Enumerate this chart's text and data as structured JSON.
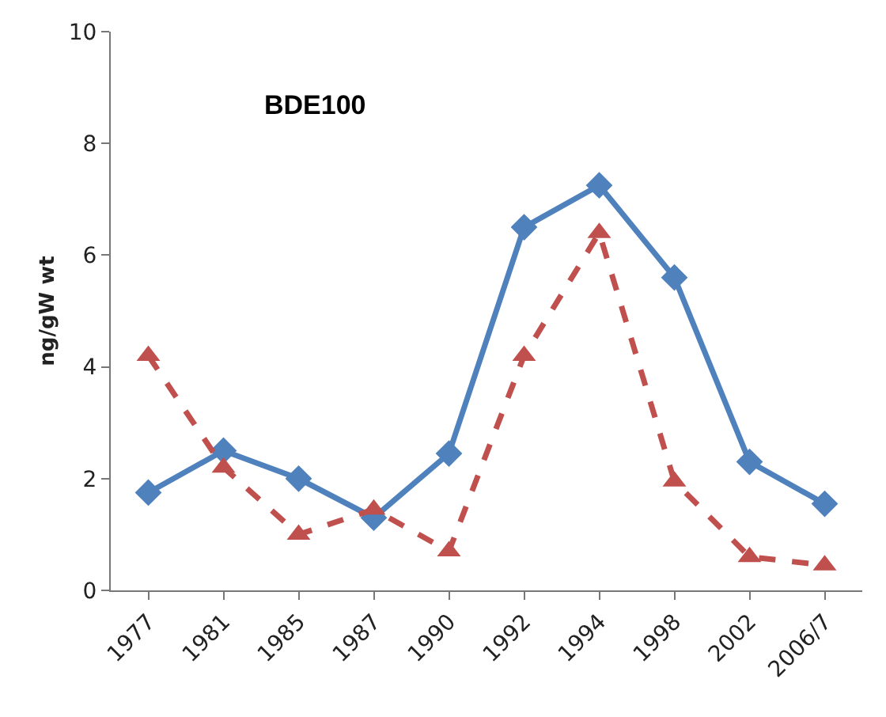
{
  "chart_data": {
    "type": "line",
    "title": "BDE100",
    "ylabel": "ng/gW wt",
    "categories": [
      "1977",
      "1981",
      "1985",
      "1987",
      "1990",
      "1992",
      "1994",
      "1998",
      "2002",
      "2006/7"
    ],
    "series": [
      {
        "color": "#4f81bd",
        "marker": "diamond",
        "line_style": "solid",
        "values": [
          1.75,
          2.5,
          2.0,
          1.3,
          2.45,
          6.5,
          7.25,
          5.6,
          2.3,
          1.55
        ]
      },
      {
        "color": "#c0504d",
        "marker": "triangle",
        "line_style": "dashed",
        "values": [
          4.2,
          2.2,
          1.0,
          1.45,
          0.7,
          4.2,
          6.4,
          1.95,
          0.6,
          0.45
        ]
      }
    ],
    "ylim": [
      0,
      10
    ],
    "yticks": [
      0,
      2,
      4,
      6,
      8,
      10
    ],
    "grid": false
  }
}
